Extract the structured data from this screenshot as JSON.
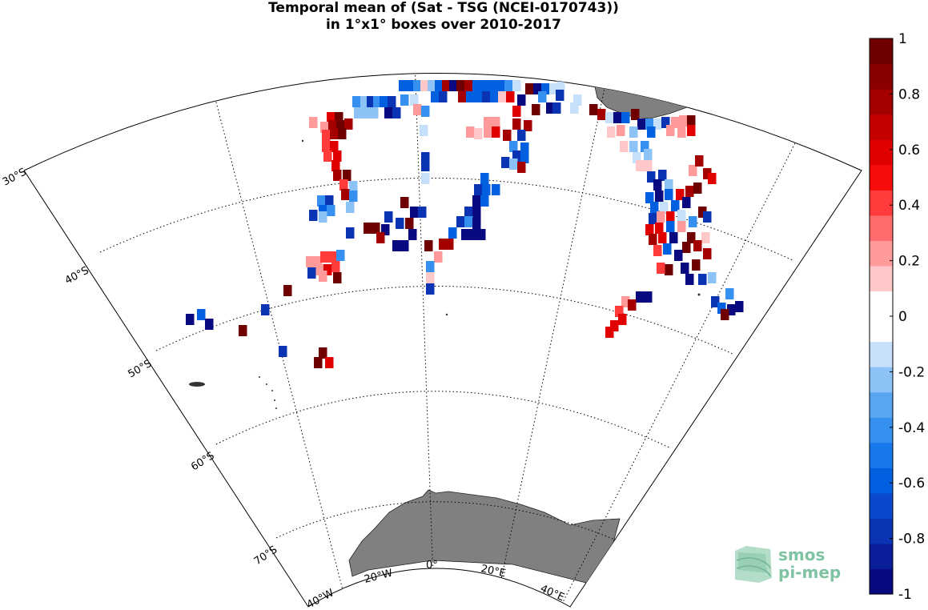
{
  "title": {
    "line1": "Temporal mean of (Sat - TSG (NCEI-0170743))",
    "line2": "in 1°x1° boxes over 2010-2017"
  },
  "map": {
    "projection": "conic",
    "lon_range": [
      -40,
      40
    ],
    "lat_range": [
      -75,
      -30
    ],
    "land_color": "#808080",
    "graticule_style": "dotted",
    "lat_labels": [
      "30°S",
      "40°S",
      "50°S",
      "60°S",
      "70°S"
    ],
    "lon_labels": [
      "40°W",
      "20°W",
      "0°",
      "20°E",
      "40°E"
    ]
  },
  "colorbar": {
    "range": [
      -1,
      1
    ],
    "tick_labels": [
      "1",
      "0.8",
      "0.6",
      "0.4",
      "0.2",
      "0",
      "-0.2",
      "-0.4",
      "-0.6",
      "-0.8",
      "-1"
    ],
    "colors": [
      "#0a0a80",
      "#0b1e99",
      "#0a34b4",
      "#0a48cc",
      "#0060e0",
      "#1878ee",
      "#3590f0",
      "#58a6f2",
      "#8cc2f5",
      "#c6e0fb",
      "#ffffff",
      "#ffffff",
      "#ffc8c8",
      "#ff9a9a",
      "#ff6a6a",
      "#ff3b3b",
      "#f70c0c",
      "#e00000",
      "#c40000",
      "#a40000",
      "#8a0000",
      "#700000"
    ]
  },
  "logo": {
    "line1": "smos",
    "line2": "pi-mep"
  }
}
